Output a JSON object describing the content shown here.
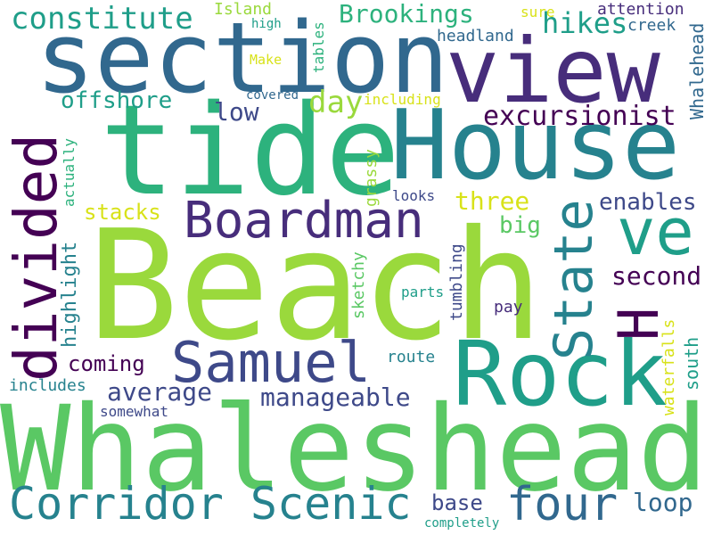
{
  "words": {
    "beach": "Beach",
    "whaleshead_big": "Whaleshead",
    "tide": "tide",
    "section": "section",
    "house": "House",
    "view": "view",
    "rock": "Rock",
    "boardman": "Boardman",
    "samuel": "Samuel",
    "corridor_scenic": "Corridor Scenic",
    "divided": "divided",
    "state": "State",
    "ve": "ve",
    "h": "H",
    "four": "four",
    "constitute": "constitute",
    "brookings": "Brookings",
    "hikes": "hikes",
    "excursionist": "excursionist",
    "offshore": "offshore",
    "day": "day",
    "low": "low",
    "enables": "enables",
    "three": "three",
    "stacks": "stacks",
    "big": "big",
    "second": "second",
    "south": "south",
    "manageable": "manageable",
    "average": "average",
    "coming": "coming",
    "highlight": "highlight",
    "loop": "loop",
    "base": "base",
    "headland": "headland",
    "creek": "creek",
    "attention": "attention",
    "whalehead_small": "Whalehead",
    "island": "Island",
    "high": "high",
    "make": "Make",
    "sure": "sure",
    "tables": "tables",
    "covered": "covered",
    "including": "including",
    "actually": "actually",
    "grassy": "grassy",
    "looks": "looks",
    "sketchy": "sketchy",
    "tumbling": "tumbling",
    "parts": "parts",
    "pay": "pay",
    "route": "route",
    "waterfalls": "waterfalls",
    "includes": "includes",
    "somewhat": "somewhat",
    "completely": "completely"
  },
  "palette": [
    "#9ad93c",
    "#5ac864",
    "#2db27d",
    "#1f9e89",
    "#26828e",
    "#31688e",
    "#3e4989",
    "#472d7b",
    "#440154",
    "#d8e219"
  ]
}
